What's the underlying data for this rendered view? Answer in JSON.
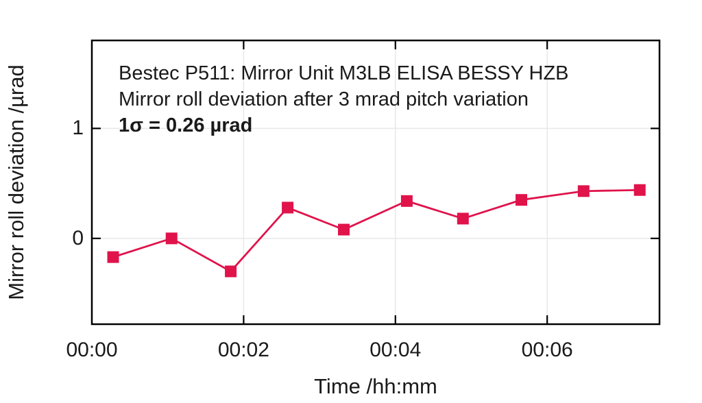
{
  "figure": {
    "background": "#ffffff",
    "text_color": "#1a1a1a"
  },
  "chart_data": {
    "type": "line",
    "title": "Bestec P511: Mirror Unit M3LB ELISA BESSY HZB",
    "subtitle": "Mirror roll deviation after 3 mrad pitch variation",
    "annotation": "1σ = 0.26 µrad",
    "xlabel": "Time /hh:mm",
    "ylabel": "Mirror roll deviation /µrad",
    "series": [
      {
        "name": "mirror-roll-deviation",
        "x_minutes": [
          0.28,
          1.05,
          1.83,
          2.58,
          3.32,
          4.15,
          4.89,
          5.66,
          6.48,
          7.22
        ],
        "y_urad": [
          -0.17,
          0.0,
          -0.3,
          0.28,
          0.08,
          0.34,
          0.18,
          0.35,
          0.43,
          0.44
        ]
      }
    ],
    "xlim_minutes": [
      0,
      7.48
    ],
    "ylim_urad": [
      -0.78,
      1.8
    ],
    "x_ticks_minutes": [
      0,
      2,
      4,
      6
    ],
    "x_tick_labels": [
      "00:00",
      "00:02",
      "00:04",
      "00:06"
    ],
    "y_ticks": [
      0,
      1
    ],
    "y_tick_labels": [
      "0",
      "1"
    ],
    "grid": true,
    "legend": "none",
    "marker": "square",
    "series_color": "#E0134B",
    "grid_color": "#e8e8e8",
    "frame_color": "#000000",
    "text_color": "#1a1a1a"
  }
}
